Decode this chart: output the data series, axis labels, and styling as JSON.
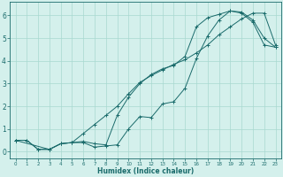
{
  "xlabel": "Humidex (Indice chaleur)",
  "bg_color": "#d4f0ec",
  "line_color": "#1a6b6b",
  "grid_color": "#a8d8d0",
  "xlim": [
    -0.5,
    23.5
  ],
  "ylim": [
    -0.3,
    6.6
  ],
  "xticks": [
    0,
    1,
    2,
    3,
    4,
    5,
    6,
    7,
    8,
    9,
    10,
    11,
    12,
    13,
    14,
    15,
    16,
    17,
    18,
    19,
    20,
    21,
    22,
    23
  ],
  "yticks": [
    0,
    1,
    2,
    3,
    4,
    5,
    6
  ],
  "line1_x": [
    0,
    1,
    2,
    3,
    4,
    5,
    6,
    7,
    8,
    9,
    10,
    11,
    12,
    13,
    14,
    15,
    16,
    17,
    18,
    19,
    20,
    21,
    22,
    23
  ],
  "line1_y": [
    0.5,
    0.5,
    0.1,
    0.1,
    0.35,
    0.4,
    0.4,
    0.2,
    0.25,
    0.3,
    1.0,
    1.55,
    1.5,
    2.1,
    2.2,
    2.8,
    4.1,
    5.1,
    5.8,
    6.2,
    6.1,
    5.7,
    4.7,
    4.6
  ],
  "line2_x": [
    0,
    1,
    2,
    3,
    4,
    5,
    6,
    7,
    8,
    9,
    10,
    11,
    12,
    13,
    14,
    15,
    16,
    17,
    18,
    19,
    20,
    21,
    22,
    23
  ],
  "line2_y": [
    0.5,
    0.5,
    0.1,
    0.1,
    0.35,
    0.4,
    0.45,
    0.35,
    0.3,
    1.6,
    2.4,
    3.0,
    3.4,
    3.65,
    3.8,
    4.2,
    5.5,
    5.9,
    6.05,
    6.2,
    6.15,
    5.8,
    5.0,
    4.6
  ],
  "line3_x": [
    0,
    3,
    4,
    5,
    6,
    7,
    8,
    9,
    10,
    11,
    12,
    13,
    14,
    15,
    16,
    17,
    18,
    19,
    20,
    21,
    22,
    23
  ],
  "line3_y": [
    0.5,
    0.1,
    0.35,
    0.4,
    0.8,
    1.2,
    1.6,
    2.0,
    2.55,
    3.05,
    3.35,
    3.6,
    3.85,
    4.05,
    4.35,
    4.7,
    5.15,
    5.5,
    5.85,
    6.1,
    6.1,
    4.7
  ]
}
